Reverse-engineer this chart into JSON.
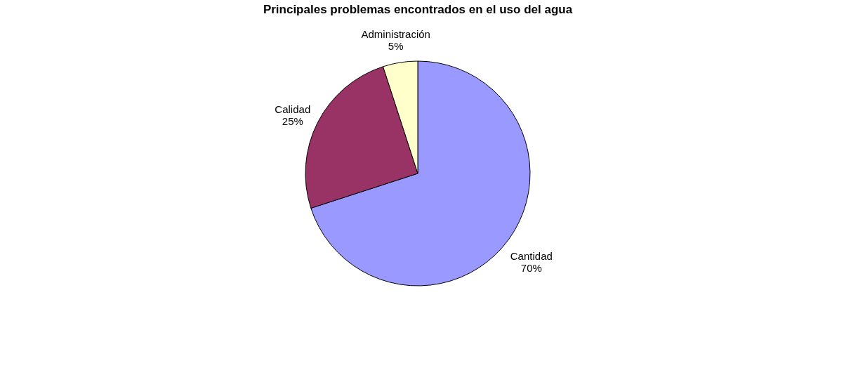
{
  "chart_data": {
    "type": "pie",
    "title": "Principales problemas encontrados en el uso del agua",
    "categories": [
      "Cantidad",
      "Calidad",
      "Administración"
    ],
    "values": [
      70,
      25,
      5
    ],
    "colors": [
      "#9999ff",
      "#993366",
      "#ffffcc"
    ],
    "value_labels": [
      "70%",
      "25%",
      "5%"
    ],
    "legend": false
  }
}
